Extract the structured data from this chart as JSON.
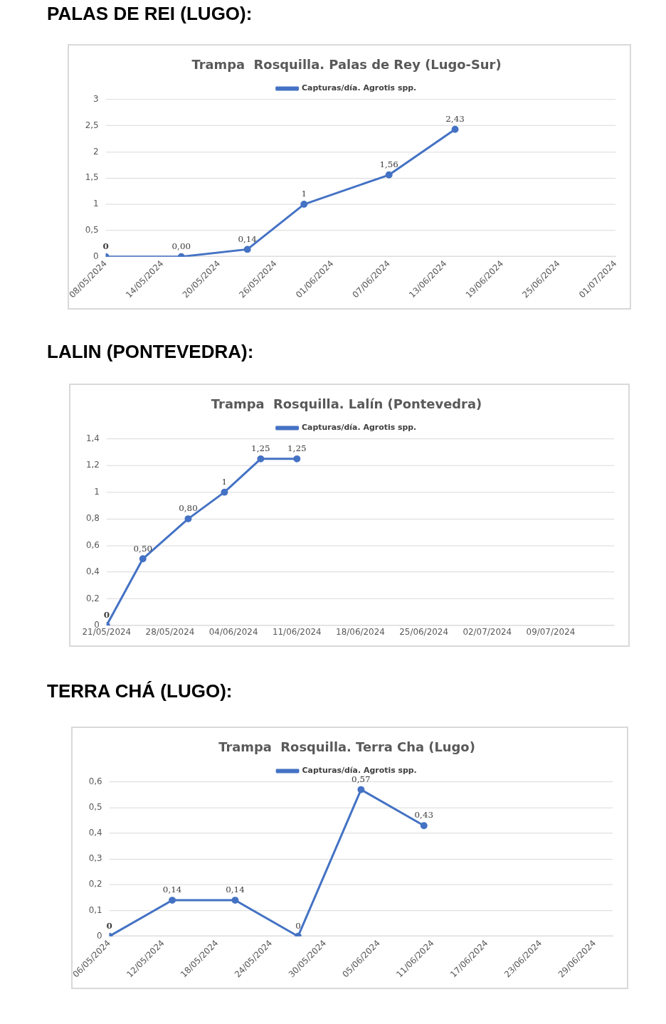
{
  "chart_data": [
    {
      "type": "line",
      "title": "Trampa  Rosquilla. Palas de Rey (Lugo-Sur)",
      "annotations": [
        "PALAS DE REI (LUGO):"
      ],
      "x": [
        "2024-05-08",
        "2024-05-16",
        "2024-05-23",
        "2024-05-29",
        "2024-06-07",
        "2024-06-14"
      ],
      "series": [
        {
          "name": "Capturas/día. Agrotis spp.",
          "color": "#4472c4",
          "values": [
            0,
            0,
            0.14,
            1,
            1.56,
            2.43
          ],
          "value_labels": [
            "0",
            "0,00",
            "0,14",
            "1",
            "1,56",
            "2,43"
          ]
        }
      ],
      "xlim": [
        "2024-05-08",
        "2024-07-01"
      ],
      "xticks": [
        {
          "value": "2024-05-08",
          "label": "08/05/2024"
        },
        {
          "value": "2024-05-14",
          "label": "14/05/2024"
        },
        {
          "value": "2024-05-20",
          "label": "20/05/2024"
        },
        {
          "value": "2024-05-26",
          "label": "26/05/2024"
        },
        {
          "value": "2024-06-01",
          "label": "01/06/2024"
        },
        {
          "value": "2024-06-07",
          "label": "07/06/2024"
        },
        {
          "value": "2024-06-13",
          "label": "13/06/2024"
        },
        {
          "value": "2024-06-19",
          "label": "19/06/2024"
        },
        {
          "value": "2024-06-25",
          "label": "25/06/2024"
        },
        {
          "value": "2024-07-01",
          "label": "01/07/2024"
        }
      ],
      "ylim": [
        0,
        3
      ],
      "yticks": [
        0,
        {
          "value": 0.5,
          "label": "0,5"
        },
        1,
        {
          "value": 1.5,
          "label": "1,5"
        },
        2,
        {
          "value": 2.5,
          "label": "2,5"
        },
        3
      ],
      "grid": "y",
      "legend": "top",
      "marker": "circle",
      "line_style": "solid"
    },
    {
      "type": "line",
      "title": "Trampa  Rosquilla. Lalín (Pontevedra)",
      "annotations": [
        "LALIN (PONTEVEDRA):"
      ],
      "x": [
        "2024-05-21",
        "2024-05-25",
        "2024-05-30",
        "2024-06-03",
        "2024-06-07",
        "2024-06-11"
      ],
      "series": [
        {
          "name": "Capturas/día. Agrotis spp.",
          "color": "#4472c4",
          "values": [
            0,
            0.5,
            0.8,
            1,
            1.25,
            1.25
          ],
          "value_labels": [
            "0",
            "0,50",
            "0,80",
            "1",
            "1,25",
            "1,25"
          ]
        }
      ],
      "xlim": [
        "2024-05-21",
        "2024-07-16"
      ],
      "xticks": [
        {
          "value": "2024-05-21",
          "label": "21/05/2024"
        },
        {
          "value": "2024-05-28",
          "label": "28/05/2024"
        },
        {
          "value": "2024-06-04",
          "label": "04/06/2024"
        },
        {
          "value": "2024-06-11",
          "label": "11/06/2024"
        },
        {
          "value": "2024-06-18",
          "label": "18/06/2024"
        },
        {
          "value": "2024-06-25",
          "label": "25/06/2024"
        },
        {
          "value": "2024-07-02",
          "label": "02/07/2024"
        },
        {
          "value": "2024-07-09",
          "label": "09/07/2024"
        }
      ],
      "ylim": [
        0,
        1.4
      ],
      "yticks": [
        0,
        {
          "value": 0.2,
          "label": "0,2"
        },
        {
          "value": 0.4,
          "label": "0,4"
        },
        {
          "value": 0.6,
          "label": "0,6"
        },
        {
          "value": 0.8,
          "label": "0,8"
        },
        1,
        {
          "value": 1.2,
          "label": "1,2"
        },
        {
          "value": 1.4,
          "label": "1,4"
        }
      ],
      "grid": "y",
      "legend": "top",
      "marker": "circle",
      "line_style": "solid"
    },
    {
      "type": "line",
      "title": "Trampa  Rosquilla. Terra Cha (Lugo)",
      "annotations": [
        "TERRA CHÁ (LUGO):"
      ],
      "x": [
        "2024-05-06",
        "2024-05-13",
        "2024-05-20",
        "2024-05-27",
        "2024-06-03",
        "2024-06-10"
      ],
      "series": [
        {
          "name": "Capturas/día. Agrotis spp.",
          "color": "#4472c4",
          "values": [
            0,
            0.14,
            0.14,
            0,
            0.57,
            0.43
          ],
          "value_labels": [
            "0",
            "0,14",
            "0,14",
            "0",
            "0,57",
            "0,43"
          ]
        }
      ],
      "xlim": [
        "2024-05-06",
        "2024-07-01"
      ],
      "xticks": [
        {
          "value": "2024-05-06",
          "label": "06/05/2024"
        },
        {
          "value": "2024-05-12",
          "label": "12/05/2024"
        },
        {
          "value": "2024-05-18",
          "label": "18/05/2024"
        },
        {
          "value": "2024-05-24",
          "label": "24/05/2024"
        },
        {
          "value": "2024-05-30",
          "label": "30/05/2024"
        },
        {
          "value": "2024-06-05",
          "label": "05/06/2024"
        },
        {
          "value": "2024-06-11",
          "label": "11/06/2024"
        },
        {
          "value": "2024-06-17",
          "label": "17/06/2024"
        },
        {
          "value": "2024-06-23",
          "label": "23/06/2024"
        },
        {
          "value": "2024-06-29",
          "label": "29/06/2024"
        }
      ],
      "ylim": [
        0,
        0.6
      ],
      "yticks": [
        0,
        {
          "value": 0.1,
          "label": "0,1"
        },
        {
          "value": 0.2,
          "label": "0,2"
        },
        {
          "value": 0.3,
          "label": "0,3"
        },
        {
          "value": 0.4,
          "label": "0,4"
        },
        {
          "value": 0.5,
          "label": "0,5"
        },
        {
          "value": 0.6,
          "label": "0,6"
        }
      ],
      "grid": "y",
      "legend": "top",
      "marker": "circle",
      "line_style": "solid"
    }
  ]
}
